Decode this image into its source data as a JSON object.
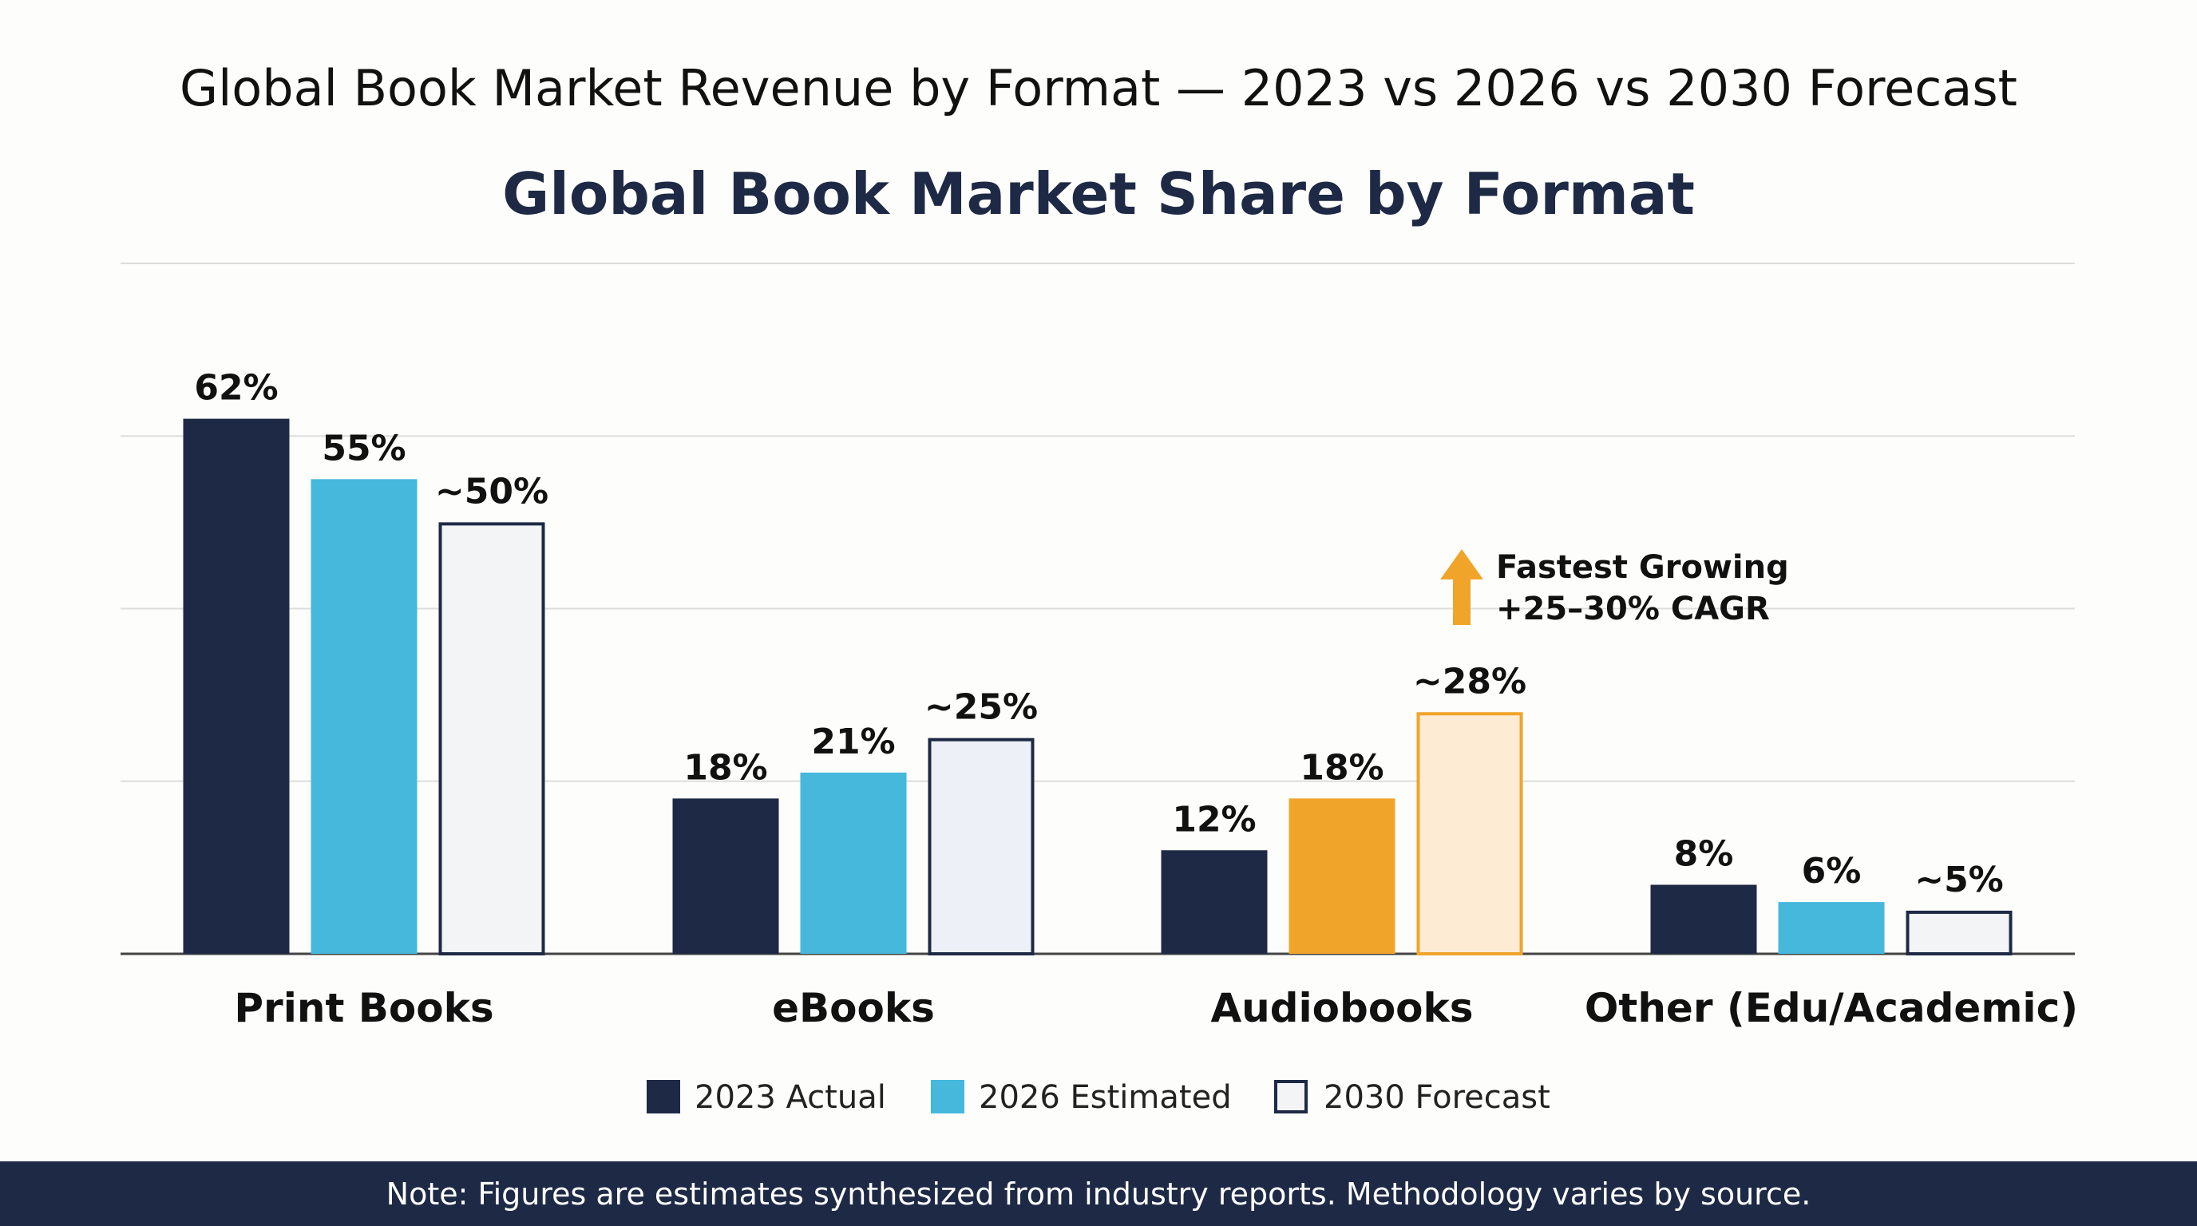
{
  "chart_data": {
    "type": "bar",
    "title": "Global Book Market Revenue by Format — 2023 vs 2026 vs 2030 Forecast",
    "subtitle": "Global Book Market Share by Format",
    "xlabel": "",
    "ylabel": "",
    "ylim": [
      0,
      80
    ],
    "grid": true,
    "gridlines": [
      20,
      40,
      60,
      80
    ],
    "legend_position": "bottom",
    "categories": [
      "Print Books",
      "eBooks",
      "Audiobooks",
      "Other (Edu/Academic)"
    ],
    "series": [
      {
        "name": "2023 Actual",
        "values": [
          62,
          18,
          12,
          8
        ],
        "labels": [
          "62%",
          "18%",
          "12%",
          "8%"
        ]
      },
      {
        "name": "2026 Estimated",
        "values": [
          55,
          21,
          18,
          6
        ],
        "labels": [
          "55%",
          "21%",
          "18%",
          "6%"
        ]
      },
      {
        "name": "2030 Forecast",
        "values": [
          50,
          25,
          28,
          5
        ],
        "labels": [
          "~50%",
          "~25%",
          "~28%",
          "~5%"
        ]
      }
    ],
    "annotation": {
      "category": "Audiobooks",
      "icon": "up-arrow-icon",
      "lines": [
        "Fastest Growing",
        "+25–30% CAGR"
      ]
    }
  },
  "colors": {
    "actual_2023": "#1e2a45",
    "estimated_2026": "#45b8dc",
    "forecast_2030_fill": "#f3f4f6",
    "forecast_2030_border": "#1e2a45",
    "ebooks_forecast_fill": "#edf1f7",
    "audiobooks_highlight": "#f0a42a",
    "audiobooks_forecast_fill": "#fdebd3",
    "grid": "#dddddd",
    "axis": "#444444",
    "footer_bg": "#1e2a45"
  },
  "footer": {
    "note": "Note: Figures are estimates synthesized from industry reports. Methodology varies by source."
  }
}
